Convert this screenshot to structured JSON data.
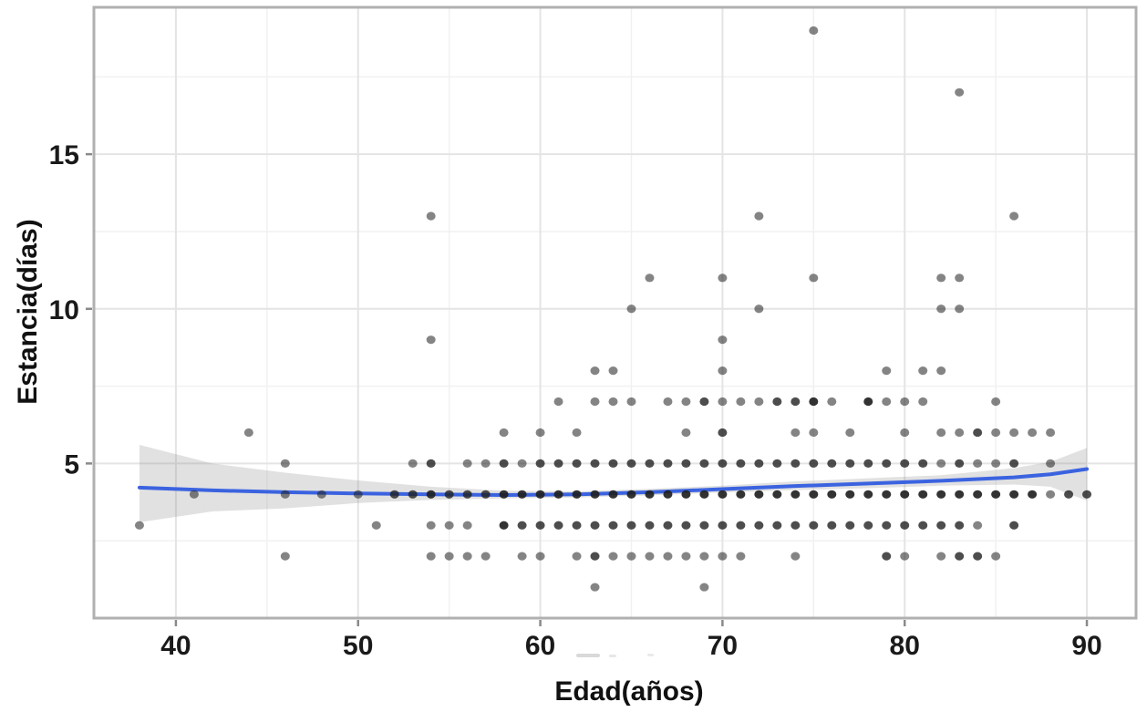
{
  "figure": {
    "background": "#ffffff",
    "panel_border_color": "#b0b0b0",
    "grid_major_color": "#e4e4e4",
    "grid_minor_color": "#f1f1f1",
    "tick_mark_color": "#8a8a8a",
    "tick_label_color": "#1a1a1a"
  },
  "chart_data": {
    "type": "scatter",
    "title": "",
    "xlabel": "Edad(años)",
    "ylabel": "Estancia(días)",
    "xlim": [
      35.5,
      92.7
    ],
    "ylim": [
      0,
      19.75
    ],
    "x_ticks": [
      40,
      50,
      60,
      70,
      80,
      90
    ],
    "x_minor": [
      45,
      55,
      65,
      75,
      85
    ],
    "y_ticks": [
      5,
      10,
      15
    ],
    "y_minor": [
      2.5,
      7.5,
      12.5,
      17.5
    ],
    "grid": "major+minor",
    "legend": "none",
    "point_color": "#1f1f1f",
    "smooth_line_color": "#3B63E0",
    "band_color": "#8f8f8f",
    "points_format": "[edad, estancia_dias, overplot_weight]",
    "points": [
      [
        63,
        1,
        1
      ],
      [
        69,
        1,
        1
      ],
      [
        46,
        2,
        1
      ],
      [
        54,
        2,
        1
      ],
      [
        55,
        2,
        1
      ],
      [
        56,
        2,
        1
      ],
      [
        57,
        2,
        1
      ],
      [
        59,
        2,
        1
      ],
      [
        60,
        2,
        1
      ],
      [
        62,
        2,
        1
      ],
      [
        63,
        2,
        2
      ],
      [
        64,
        2,
        1
      ],
      [
        65,
        2,
        1
      ],
      [
        66,
        2,
        1
      ],
      [
        67,
        2,
        1
      ],
      [
        68,
        2,
        1
      ],
      [
        69,
        2,
        1
      ],
      [
        70,
        2,
        1
      ],
      [
        71,
        2,
        1
      ],
      [
        74,
        2,
        1
      ],
      [
        79,
        2,
        2
      ],
      [
        80,
        2,
        1
      ],
      [
        82,
        2,
        1
      ],
      [
        83,
        2,
        2
      ],
      [
        84,
        2,
        2
      ],
      [
        85,
        2,
        1
      ],
      [
        38,
        3,
        1
      ],
      [
        51,
        3,
        1
      ],
      [
        54,
        3,
        1
      ],
      [
        55,
        3,
        1
      ],
      [
        56,
        3,
        1
      ],
      [
        58,
        3,
        3
      ],
      [
        59,
        3,
        2
      ],
      [
        60,
        3,
        2
      ],
      [
        61,
        3,
        2
      ],
      [
        62,
        3,
        2
      ],
      [
        63,
        3,
        2
      ],
      [
        64,
        3,
        2
      ],
      [
        65,
        3,
        2
      ],
      [
        66,
        3,
        2
      ],
      [
        67,
        3,
        2
      ],
      [
        68,
        3,
        2
      ],
      [
        69,
        3,
        2
      ],
      [
        70,
        3,
        2
      ],
      [
        71,
        3,
        2
      ],
      [
        72,
        3,
        2
      ],
      [
        73,
        3,
        2
      ],
      [
        74,
        3,
        2
      ],
      [
        75,
        3,
        2
      ],
      [
        76,
        3,
        2
      ],
      [
        77,
        3,
        2
      ],
      [
        78,
        3,
        2
      ],
      [
        79,
        3,
        2
      ],
      [
        80,
        3,
        2
      ],
      [
        81,
        3,
        2
      ],
      [
        82,
        3,
        2
      ],
      [
        83,
        3,
        2
      ],
      [
        84,
        3,
        1
      ],
      [
        86,
        3,
        2
      ],
      [
        41,
        4,
        1
      ],
      [
        46,
        4,
        1
      ],
      [
        48,
        4,
        1
      ],
      [
        50,
        4,
        1
      ],
      [
        52,
        4,
        2
      ],
      [
        53,
        4,
        2
      ],
      [
        54,
        4,
        3
      ],
      [
        55,
        4,
        2
      ],
      [
        56,
        4,
        2
      ],
      [
        57,
        4,
        2
      ],
      [
        58,
        4,
        3
      ],
      [
        59,
        4,
        3
      ],
      [
        60,
        4,
        3
      ],
      [
        61,
        4,
        3
      ],
      [
        62,
        4,
        3
      ],
      [
        63,
        4,
        3
      ],
      [
        64,
        4,
        3
      ],
      [
        65,
        4,
        3
      ],
      [
        66,
        4,
        3
      ],
      [
        67,
        4,
        3
      ],
      [
        68,
        4,
        3
      ],
      [
        69,
        4,
        3
      ],
      [
        70,
        4,
        3
      ],
      [
        71,
        4,
        3
      ],
      [
        72,
        4,
        3
      ],
      [
        73,
        4,
        3
      ],
      [
        74,
        4,
        3
      ],
      [
        75,
        4,
        3
      ],
      [
        76,
        4,
        3
      ],
      [
        77,
        4,
        3
      ],
      [
        78,
        4,
        3
      ],
      [
        79,
        4,
        3
      ],
      [
        80,
        4,
        3
      ],
      [
        81,
        4,
        3
      ],
      [
        82,
        4,
        3
      ],
      [
        83,
        4,
        3
      ],
      [
        84,
        4,
        3
      ],
      [
        85,
        4,
        3
      ],
      [
        86,
        4,
        3
      ],
      [
        87,
        4,
        3
      ],
      [
        88,
        4,
        1
      ],
      [
        89,
        4,
        2
      ],
      [
        90,
        4,
        2
      ],
      [
        46,
        5,
        1
      ],
      [
        53,
        5,
        1
      ],
      [
        54,
        5,
        2
      ],
      [
        56,
        5,
        1
      ],
      [
        57,
        5,
        1
      ],
      [
        58,
        5,
        2
      ],
      [
        59,
        5,
        1
      ],
      [
        60,
        5,
        2
      ],
      [
        61,
        5,
        2
      ],
      [
        62,
        5,
        2
      ],
      [
        63,
        5,
        2
      ],
      [
        64,
        5,
        2
      ],
      [
        65,
        5,
        2
      ],
      [
        66,
        5,
        2
      ],
      [
        67,
        5,
        2
      ],
      [
        68,
        5,
        2
      ],
      [
        69,
        5,
        2
      ],
      [
        70,
        5,
        2
      ],
      [
        71,
        5,
        2
      ],
      [
        72,
        5,
        2
      ],
      [
        73,
        5,
        2
      ],
      [
        74,
        5,
        2
      ],
      [
        75,
        5,
        2
      ],
      [
        76,
        5,
        2
      ],
      [
        77,
        5,
        2
      ],
      [
        78,
        5,
        2
      ],
      [
        79,
        5,
        2
      ],
      [
        80,
        5,
        2
      ],
      [
        81,
        5,
        2
      ],
      [
        82,
        5,
        1
      ],
      [
        83,
        5,
        2
      ],
      [
        84,
        5,
        1
      ],
      [
        85,
        5,
        1
      ],
      [
        86,
        5,
        2
      ],
      [
        88,
        5,
        1
      ],
      [
        44,
        6,
        1
      ],
      [
        58,
        6,
        1
      ],
      [
        60,
        6,
        1
      ],
      [
        62,
        6,
        1
      ],
      [
        68,
        6,
        1
      ],
      [
        70,
        6,
        2
      ],
      [
        74,
        6,
        1
      ],
      [
        75,
        6,
        1
      ],
      [
        77,
        6,
        1
      ],
      [
        80,
        6,
        1
      ],
      [
        82,
        6,
        1
      ],
      [
        83,
        6,
        1
      ],
      [
        84,
        6,
        2
      ],
      [
        85,
        6,
        1
      ],
      [
        86,
        6,
        1
      ],
      [
        87,
        6,
        1
      ],
      [
        88,
        6,
        1
      ],
      [
        61,
        7,
        1
      ],
      [
        63,
        7,
        1
      ],
      [
        64,
        7,
        1
      ],
      [
        65,
        7,
        1
      ],
      [
        67,
        7,
        1
      ],
      [
        68,
        7,
        1
      ],
      [
        69,
        7,
        2
      ],
      [
        70,
        7,
        1
      ],
      [
        71,
        7,
        1
      ],
      [
        72,
        7,
        1
      ],
      [
        73,
        7,
        2
      ],
      [
        74,
        7,
        2
      ],
      [
        75,
        7,
        3
      ],
      [
        76,
        7,
        1
      ],
      [
        78,
        7,
        3
      ],
      [
        79,
        7,
        1
      ],
      [
        80,
        7,
        1
      ],
      [
        81,
        7,
        1
      ],
      [
        85,
        7,
        1
      ],
      [
        63,
        8,
        1
      ],
      [
        64,
        8,
        1
      ],
      [
        70,
        8,
        1
      ],
      [
        79,
        8,
        1
      ],
      [
        81,
        8,
        1
      ],
      [
        82,
        8,
        1
      ],
      [
        54,
        9,
        1
      ],
      [
        70,
        9,
        1
      ],
      [
        65,
        10,
        1
      ],
      [
        72,
        10,
        1
      ],
      [
        82,
        10,
        1
      ],
      [
        83,
        10,
        1
      ],
      [
        66,
        11,
        1
      ],
      [
        70,
        11,
        1
      ],
      [
        75,
        11,
        1
      ],
      [
        82,
        11,
        1
      ],
      [
        83,
        11,
        1
      ],
      [
        54,
        13,
        1
      ],
      [
        72,
        13,
        1
      ],
      [
        86,
        13,
        1
      ],
      [
        83,
        17,
        1
      ],
      [
        75,
        19,
        1
      ]
    ],
    "smooth_line": [
      [
        38,
        4.22
      ],
      [
        42,
        4.13
      ],
      [
        46,
        4.07
      ],
      [
        50,
        4.03
      ],
      [
        54,
        4.0
      ],
      [
        58,
        3.98
      ],
      [
        62,
        4.0
      ],
      [
        66,
        4.07
      ],
      [
        70,
        4.17
      ],
      [
        74,
        4.27
      ],
      [
        78,
        4.35
      ],
      [
        82,
        4.44
      ],
      [
        86,
        4.55
      ],
      [
        88,
        4.65
      ],
      [
        90,
        4.82
      ]
    ],
    "confidence_band": [
      [
        38,
        3.1,
        5.6
      ],
      [
        42,
        3.45,
        5.0
      ],
      [
        46,
        3.55,
        4.7
      ],
      [
        50,
        3.72,
        4.45
      ],
      [
        54,
        3.82,
        4.25
      ],
      [
        58,
        3.87,
        4.12
      ],
      [
        62,
        3.9,
        4.1
      ],
      [
        66,
        3.97,
        4.18
      ],
      [
        70,
        4.06,
        4.28
      ],
      [
        74,
        4.14,
        4.42
      ],
      [
        78,
        4.2,
        4.52
      ],
      [
        82,
        4.28,
        4.62
      ],
      [
        86,
        4.32,
        4.85
      ],
      [
        88,
        4.25,
        5.05
      ],
      [
        90,
        3.8,
        5.5
      ]
    ]
  }
}
